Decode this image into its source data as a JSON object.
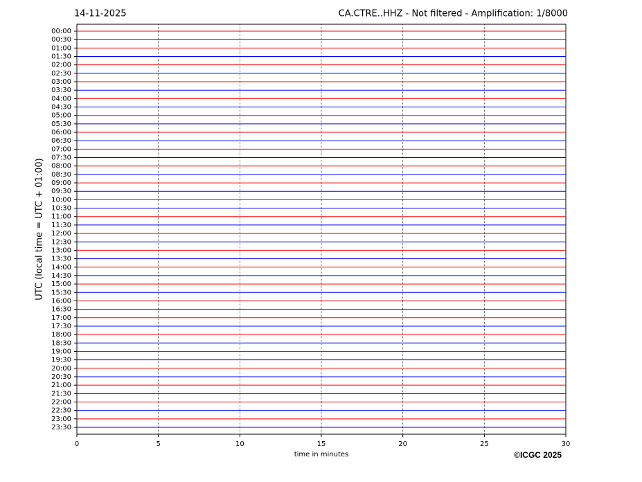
{
  "chart_data": {
    "type": "helicorder",
    "title": "CA.CTRE..HHZ - Not filtered - Amplification: 1/8000",
    "date": "14-11-2025",
    "ylabel": "UTC (local time = UTC + 01:00)",
    "xlabel": "time in minutes",
    "copyright": "©ICGC 2025",
    "categories": [
      "00:00",
      "00:30",
      "01:00",
      "01:30",
      "02:00",
      "02:30",
      "03:00",
      "03:30",
      "04:00",
      "04:30",
      "05:00",
      "05:30",
      "06:00",
      "06:30",
      "07:00",
      "07:30",
      "08:00",
      "08:30",
      "09:00",
      "09:30",
      "10:00",
      "10:30",
      "11:00",
      "11:30",
      "12:00",
      "12:30",
      "13:00",
      "13:30",
      "14:00",
      "14:30",
      "15:00",
      "15:30",
      "16:00",
      "16:30",
      "17:00",
      "17:30",
      "18:00",
      "18:30",
      "19:00",
      "19:30",
      "20:00",
      "20:30",
      "21:00",
      "21:30",
      "22:00",
      "22:30",
      "23:00",
      "23:30"
    ],
    "colors": [
      "#ff0000",
      "#0000ff"
    ],
    "xlim": [
      0,
      30
    ],
    "xticks": [
      0,
      5,
      10,
      15,
      20,
      25,
      30
    ],
    "grid": true
  }
}
